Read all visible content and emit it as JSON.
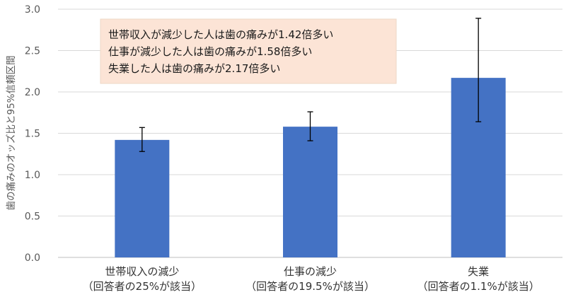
{
  "chart_data": {
    "type": "bar",
    "categories": [
      [
        "世帯収入の減少",
        "（回答者の25%が該当）"
      ],
      [
        "仕事の減少",
        "（回答者の19.5%が該当）"
      ],
      [
        "失業",
        "（回答者の1.1%が該当）"
      ]
    ],
    "values": [
      1.42,
      1.58,
      2.17
    ],
    "error_low": [
      1.28,
      1.41,
      1.64
    ],
    "error_high": [
      1.57,
      1.76,
      2.89
    ],
    "ylabel": "歯の痛みのオッズ比と95%信頼区間",
    "ylim": [
      0,
      3.0
    ],
    "yticks": [
      "0.0",
      "0.5",
      "1.0",
      "1.5",
      "2.0",
      "2.5",
      "3.0"
    ],
    "grid": true,
    "bar_color": "#4472c4",
    "annotation": {
      "lines": [
        "世帯収入が減少した人は歯の痛みが1.42倍多い",
        "仕事が減少した人は歯の痛みが1.58倍多い",
        "失業した人は歯の痛みが2.17倍多い"
      ],
      "background": "#fce4d6"
    }
  }
}
